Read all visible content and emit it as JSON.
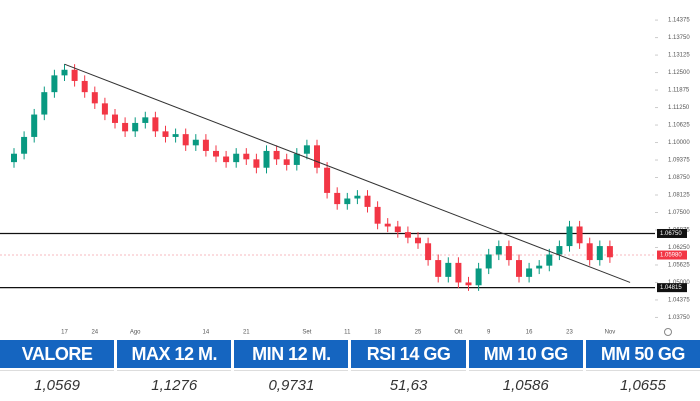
{
  "chart_data": {
    "type": "candlestick",
    "categories": [
      null,
      null,
      null,
      null,
      null,
      "17",
      null,
      null,
      "24",
      null,
      null,
      null,
      "Ago",
      null,
      null,
      null,
      null,
      null,
      null,
      "14",
      null,
      null,
      null,
      "21",
      null,
      null,
      null,
      null,
      null,
      "Set",
      null,
      null,
      null,
      "11",
      null,
      null,
      "18",
      null,
      null,
      null,
      "25",
      null,
      null,
      null,
      "Ott",
      null,
      null,
      "9",
      null,
      null,
      null,
      "16",
      null,
      null,
      null,
      "23",
      null,
      null,
      null,
      "Nov"
    ],
    "open": [
      1.093,
      1.096,
      1.102,
      1.11,
      1.118,
      1.124,
      1.126,
      1.122,
      1.118,
      1.114,
      1.11,
      1.107,
      1.104,
      1.107,
      1.109,
      1.104,
      1.102,
      1.103,
      1.099,
      1.101,
      1.097,
      1.095,
      1.093,
      1.096,
      1.094,
      1.091,
      1.097,
      1.094,
      1.092,
      1.096,
      1.099,
      1.091,
      1.082,
      1.078,
      1.08,
      1.081,
      1.077,
      1.071,
      1.07,
      1.068,
      1.066,
      1.064,
      1.058,
      1.052,
      1.057,
      1.05,
      1.049,
      1.055,
      1.06,
      1.063,
      1.058,
      1.052,
      1.055,
      1.056,
      1.06,
      1.063,
      1.07,
      1.064,
      1.058,
      1.063
    ],
    "high": [
      1.098,
      1.104,
      1.112,
      1.12,
      1.126,
      1.128,
      1.128,
      1.124,
      1.12,
      1.116,
      1.112,
      1.109,
      1.109,
      1.111,
      1.111,
      1.106,
      1.105,
      1.105,
      1.103,
      1.103,
      1.099,
      1.097,
      1.098,
      1.098,
      1.096,
      1.099,
      1.099,
      1.096,
      1.098,
      1.101,
      1.101,
      1.093,
      1.084,
      1.082,
      1.083,
      1.083,
      1.079,
      1.073,
      1.072,
      1.07,
      1.068,
      1.066,
      1.06,
      1.059,
      1.059,
      1.052,
      1.057,
      1.062,
      1.065,
      1.065,
      1.06,
      1.057,
      1.058,
      1.062,
      1.065,
      1.072,
      1.072,
      1.066,
      1.065,
      1.065
    ],
    "low": [
      1.091,
      1.094,
      1.1,
      1.108,
      1.116,
      1.122,
      1.12,
      1.116,
      1.112,
      1.108,
      1.105,
      1.102,
      1.102,
      1.105,
      1.102,
      1.1,
      1.1,
      1.097,
      1.097,
      1.095,
      1.093,
      1.091,
      1.091,
      1.092,
      1.089,
      1.089,
      1.092,
      1.09,
      1.09,
      1.094,
      1.089,
      1.08,
      1.076,
      1.076,
      1.078,
      1.075,
      1.069,
      1.068,
      1.066,
      1.064,
      1.062,
      1.056,
      1.05,
      1.05,
      1.048,
      1.047,
      1.047,
      1.053,
      1.058,
      1.056,
      1.05,
      1.05,
      1.053,
      1.054,
      1.058,
      1.061,
      1.062,
      1.056,
      1.056,
      1.057
    ],
    "close": [
      1.096,
      1.102,
      1.11,
      1.118,
      1.124,
      1.126,
      1.122,
      1.118,
      1.114,
      1.11,
      1.107,
      1.104,
      1.107,
      1.109,
      1.104,
      1.102,
      1.103,
      1.099,
      1.101,
      1.097,
      1.095,
      1.093,
      1.096,
      1.094,
      1.091,
      1.097,
      1.094,
      1.092,
      1.096,
      1.099,
      1.091,
      1.082,
      1.078,
      1.08,
      1.081,
      1.077,
      1.071,
      1.07,
      1.068,
      1.066,
      1.064,
      1.058,
      1.052,
      1.057,
      1.05,
      1.049,
      1.055,
      1.06,
      1.063,
      1.058,
      1.052,
      1.055,
      1.056,
      1.06,
      1.063,
      1.07,
      1.064,
      1.058,
      1.063,
      1.059
    ],
    "up_color": "#089981",
    "down_color": "#f23645",
    "ylim": [
      1.0348,
      1.147
    ],
    "yticks": [
      {
        "value": 1.0375,
        "label": "1.03750"
      },
      1.04375,
      {
        "value": 1.05,
        "label": "1.05000"
      },
      1.05625,
      {
        "value": 1.0625,
        "label": "1.06250"
      },
      1.06875,
      {
        "value": 1.075,
        "label": "1.07500"
      },
      1.08125,
      {
        "value": 1.0875,
        "label": "1.08750"
      },
      1.09375,
      {
        "value": 1.1,
        "label": "1.10000"
      },
      1.10625,
      {
        "value": 1.1125,
        "label": "1.11250"
      },
      1.11875,
      {
        "value": 1.125,
        "label": "1.12500"
      },
      1.13125,
      {
        "value": 1.1375,
        "label": "1.13750"
      },
      1.14375
    ],
    "levels": [
      {
        "value": 1.0675,
        "label": "1.06750"
      },
      {
        "value": 1.04815,
        "label": "1.04815"
      }
    ],
    "current_price": {
      "value": 1.0598,
      "label": "1.05980",
      "color": "#f23645"
    },
    "trendline": {
      "start": [
        5,
        1.128
      ],
      "end": [
        61,
        1.05
      ]
    }
  },
  "table": {
    "headers": [
      "VALORE",
      "MAX 12 M.",
      "MIN 12 M.",
      "RSI 14 GG",
      "MM 10 GG",
      "MM 50 GG"
    ],
    "rows": [
      [
        "1,0569",
        "1,1276",
        "0,9731",
        "51,63",
        "1,0586",
        "1,0655"
      ]
    ]
  }
}
